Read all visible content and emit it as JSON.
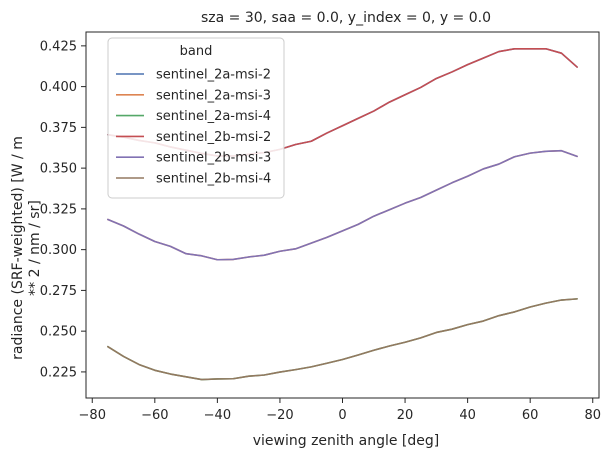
{
  "chart_data": {
    "type": "line",
    "title": "sza = 30, saa = 0.0, y_index = 0, y = 0.0",
    "xlabel": "viewing zenith angle [deg]",
    "ylabel_lines": [
      "radiance (SRF-weighted) [W / m",
      "** 2 / nm / sr]"
    ],
    "xlim": [
      -82,
      82
    ],
    "ylim": [
      0.209,
      0.4335
    ],
    "xticks": [
      -80,
      -60,
      -40,
      -20,
      0,
      20,
      40,
      60,
      80
    ],
    "yticks": [
      0.225,
      0.25,
      0.275,
      0.3,
      0.325,
      0.35,
      0.375,
      0.4,
      0.425
    ],
    "ytick_labels": [
      "0.225",
      "0.250",
      "0.275",
      "0.300",
      "0.325",
      "0.350",
      "0.375",
      "0.400",
      "0.425"
    ],
    "grid": false,
    "legend": {
      "title": "band",
      "placement": "upper-left"
    },
    "x": [
      -75,
      -70,
      -65,
      -60,
      -55,
      -50,
      -45,
      -40,
      -35,
      -30,
      -25,
      -20,
      -15,
      -10,
      -5,
      0,
      5,
      10,
      15,
      20,
      25,
      30,
      35,
      40,
      45,
      50,
      55,
      60,
      65,
      70,
      75
    ],
    "series": [
      {
        "name": "sentinel_2a-msi-2",
        "color": "#4c72b0",
        "values": [
          0.3705,
          0.369,
          0.367,
          0.3655,
          0.363,
          0.361,
          0.359,
          0.3575,
          0.3575,
          0.3585,
          0.3595,
          0.3615,
          0.3645,
          0.3665,
          0.3715,
          0.376,
          0.3805,
          0.385,
          0.3905,
          0.395,
          0.3995,
          0.405,
          0.409,
          0.4135,
          0.4175,
          0.4215,
          0.4232,
          0.4232,
          0.4232,
          0.4205,
          0.412
        ]
      },
      {
        "name": "sentinel_2a-msi-3",
        "color": "#dd8452",
        "values": [
          0.3185,
          0.3145,
          0.3095,
          0.305,
          0.302,
          0.2975,
          0.2962,
          0.2938,
          0.294,
          0.2955,
          0.2966,
          0.299,
          0.3005,
          0.304,
          0.3075,
          0.3115,
          0.3155,
          0.3205,
          0.3245,
          0.3285,
          0.332,
          0.3365,
          0.341,
          0.345,
          0.3495,
          0.3525,
          0.357,
          0.3592,
          0.3603,
          0.3607,
          0.3572
        ]
      },
      {
        "name": "sentinel_2a-msi-4",
        "color": "#55a868",
        "values": [
          0.2405,
          0.2345,
          0.2295,
          0.226,
          0.2237,
          0.222,
          0.2203,
          0.2207,
          0.2208,
          0.2224,
          0.2231,
          0.2249,
          0.2264,
          0.2281,
          0.2303,
          0.2326,
          0.2354,
          0.2383,
          0.2409,
          0.2432,
          0.2459,
          0.2492,
          0.2512,
          0.254,
          0.2562,
          0.2595,
          0.2618,
          0.2648,
          0.2672,
          0.2691,
          0.2698
        ]
      },
      {
        "name": "sentinel_2b-msi-2",
        "color": "#c44e52",
        "values": [
          0.3705,
          0.369,
          0.367,
          0.3655,
          0.363,
          0.361,
          0.359,
          0.3575,
          0.3575,
          0.3585,
          0.3595,
          0.3615,
          0.3645,
          0.3665,
          0.3715,
          0.376,
          0.3805,
          0.385,
          0.3905,
          0.395,
          0.3995,
          0.405,
          0.409,
          0.4135,
          0.4175,
          0.4215,
          0.4232,
          0.4232,
          0.4232,
          0.4205,
          0.412
        ]
      },
      {
        "name": "sentinel_2b-msi-3",
        "color": "#8172b3",
        "values": [
          0.3185,
          0.3145,
          0.3095,
          0.305,
          0.302,
          0.2975,
          0.2962,
          0.2938,
          0.294,
          0.2955,
          0.2966,
          0.299,
          0.3005,
          0.304,
          0.3075,
          0.3115,
          0.3155,
          0.3205,
          0.3245,
          0.3285,
          0.332,
          0.3365,
          0.341,
          0.345,
          0.3495,
          0.3525,
          0.357,
          0.3592,
          0.3603,
          0.3607,
          0.3572
        ]
      },
      {
        "name": "sentinel_2b-msi-4",
        "color": "#937860",
        "values": [
          0.2405,
          0.2345,
          0.2295,
          0.226,
          0.2237,
          0.222,
          0.2203,
          0.2207,
          0.2208,
          0.2224,
          0.2231,
          0.2249,
          0.2264,
          0.2281,
          0.2303,
          0.2326,
          0.2354,
          0.2383,
          0.2409,
          0.2432,
          0.2459,
          0.2492,
          0.2512,
          0.254,
          0.2562,
          0.2595,
          0.2618,
          0.2648,
          0.2672,
          0.2691,
          0.2698
        ]
      }
    ]
  }
}
